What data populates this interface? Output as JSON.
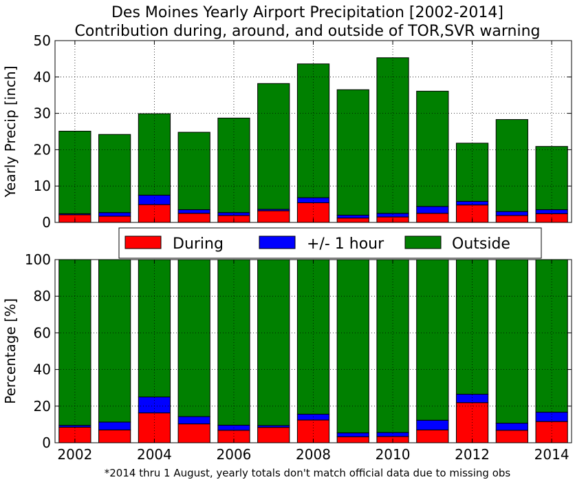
{
  "title_line1": "Des Moines Yearly Airport Precipitation [2002-2014]",
  "title_line2": "Contribution during, around, and outside of TOR,SVR warning",
  "footnote": "*2014 thru 1 August, yearly totals don't match official data due to missing obs",
  "colors": {
    "during": "#ff0000",
    "around": "#0000ff",
    "outside": "#008000"
  },
  "legend": {
    "placement": "between-panels",
    "entries": [
      "During",
      "+/- 1 hour",
      "Outside"
    ]
  },
  "chart_data": [
    {
      "type": "bar",
      "stacked": true,
      "grid": true,
      "ylabel": "Yearly Precip [inch]",
      "ylim": [
        0,
        50
      ],
      "yticks": [
        "0",
        "10",
        "20",
        "30",
        "40",
        "50"
      ],
      "categories": [
        "2002",
        "2003",
        "2004",
        "2005",
        "2006",
        "2007",
        "2008",
        "2009",
        "2010",
        "2011",
        "2012",
        "2013",
        "2014"
      ],
      "series": [
        {
          "name": "During",
          "values": [
            2.1,
            1.7,
            4.9,
            2.5,
            1.9,
            3.2,
            5.4,
            1.2,
            1.5,
            2.5,
            4.8,
            1.9,
            2.4
          ]
        },
        {
          "name": "+/- 1 hour",
          "values": [
            0.3,
            1.0,
            2.6,
            1.0,
            0.8,
            0.4,
            1.4,
            0.8,
            1.0,
            1.9,
            1.0,
            1.1,
            1.1
          ]
        },
        {
          "name": "Outside",
          "values": [
            22.7,
            21.5,
            22.4,
            21.3,
            26.0,
            34.6,
            36.8,
            34.5,
            42.8,
            31.7,
            16.0,
            25.3,
            17.4
          ]
        }
      ]
    },
    {
      "type": "bar",
      "stacked": true,
      "grid": true,
      "ylabel": "Percentage [%]",
      "ylim": [
        0,
        100
      ],
      "yticks": [
        "0",
        "20",
        "40",
        "60",
        "80",
        "100"
      ],
      "xticks": [
        "2002",
        "2004",
        "2006",
        "2008",
        "2010",
        "2012",
        "2014"
      ],
      "categories": [
        "2002",
        "2003",
        "2004",
        "2005",
        "2006",
        "2007",
        "2008",
        "2009",
        "2010",
        "2011",
        "2012",
        "2013",
        "2014"
      ],
      "series": [
        {
          "name": "During",
          "values": [
            8.5,
            7.0,
            16.3,
            10.3,
            6.8,
            8.4,
            12.4,
            3.3,
            3.4,
            7.0,
            21.9,
            6.8,
            11.6
          ]
        },
        {
          "name": "+/- 1 hour",
          "values": [
            1.0,
            4.3,
            8.7,
            4.0,
            2.8,
            1.0,
            3.2,
            2.1,
            2.2,
            5.3,
            4.6,
            3.9,
            5.1
          ]
        },
        {
          "name": "Outside",
          "values": [
            90.5,
            88.7,
            75.0,
            85.7,
            90.4,
            90.6,
            84.4,
            94.6,
            94.4,
            87.7,
            73.5,
            89.3,
            83.3
          ]
        }
      ]
    }
  ]
}
